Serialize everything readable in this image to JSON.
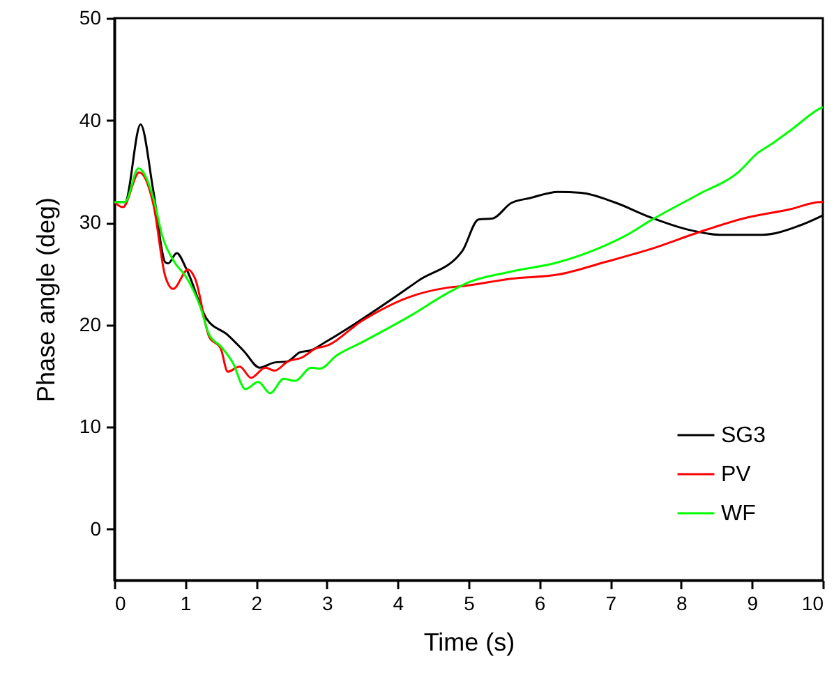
{
  "chart_data": {
    "type": "line",
    "xlabel": "Time (s)",
    "ylabel": "Phase angle (deg)",
    "xlim": [
      0,
      10
    ],
    "xticks": [
      0,
      1,
      2,
      3,
      4,
      5,
      6,
      7,
      8,
      9,
      10
    ],
    "ylim": [
      -5,
      50
    ],
    "yticks": [
      0,
      10,
      20,
      30,
      40,
      50
    ],
    "grid": false,
    "legend": "bottom right",
    "marker": "none",
    "line_style": "solid",
    "series": [
      {
        "name": "SG3",
        "color": "#000000",
        "x": [
          0,
          0.15,
          0.37,
          0.55,
          0.72,
          0.76,
          0.88,
          1.02,
          1.3,
          1.6,
          1.83,
          2.05,
          2.26,
          2.44,
          2.62,
          2.78,
          2.98,
          3.96,
          4.29,
          4.91,
          5.14,
          5.34,
          5.6,
          5.87,
          6.26,
          6.59,
          7.05,
          7.57,
          8.1,
          8.56,
          9.15,
          9.67,
          9.97,
          10
        ],
        "values": [
          32,
          32,
          39.6,
          33.1,
          26.1,
          26,
          27,
          25.4,
          20.6,
          19,
          17.4,
          15.8,
          16.3,
          16.4,
          17.3,
          17.5,
          18.3,
          22.7,
          24.3,
          27.2,
          30.3,
          30.4,
          31.9,
          32.4,
          33,
          32.9,
          32,
          30.5,
          29.3,
          28.8,
          28.8,
          29.7,
          30.6,
          30.7
        ]
      },
      {
        "name": "PV",
        "color": "#ff0000",
        "x": [
          0,
          0.12,
          0.35,
          0.55,
          0.72,
          0.83,
          1.04,
          1.14,
          1.34,
          1.5,
          1.6,
          1.77,
          1.93,
          2.13,
          2.26,
          2.45,
          2.65,
          2.85,
          2.98,
          3.5,
          4.16,
          4.68,
          4.95,
          5.6,
          6.26,
          6.91,
          7.57,
          8.23,
          8.88,
          9.54,
          9.97,
          10
        ],
        "values": [
          32,
          31.5,
          34.9,
          31.8,
          24.7,
          23.5,
          25.4,
          24.5,
          18.8,
          17.7,
          15.4,
          15.9,
          14.8,
          15.8,
          15.5,
          16.4,
          16.8,
          17.7,
          17.9,
          20.4,
          22.7,
          23.6,
          23.8,
          24.5,
          24.9,
          26.1,
          27.4,
          29,
          30.4,
          31.3,
          32,
          32
        ]
      },
      {
        "name": "WF",
        "color": "#00ff00",
        "x": [
          0,
          0.15,
          0.34,
          0.55,
          0.68,
          0.85,
          1.01,
          1.21,
          1.34,
          1.5,
          1.67,
          1.85,
          2.03,
          2.2,
          2.39,
          2.55,
          2.78,
          2.9,
          3.14,
          3.5,
          4.16,
          4.68,
          4.95,
          5.6,
          6.26,
          6.91,
          7.24,
          7.57,
          8.23,
          8.82,
          9.08,
          9.28,
          9.54,
          9.97,
          10
        ],
        "values": [
          32,
          32,
          35.3,
          32.4,
          28.6,
          26.1,
          24.7,
          21.8,
          19,
          17.9,
          16.3,
          13.7,
          14.4,
          13.3,
          14.7,
          14.5,
          15.8,
          15.7,
          17,
          18.3,
          20.8,
          23,
          24,
          25.2,
          26.1,
          27.7,
          28.8,
          30.2,
          32.7,
          35,
          36.8,
          37.7,
          39,
          41.2,
          41.3
        ]
      }
    ]
  }
}
